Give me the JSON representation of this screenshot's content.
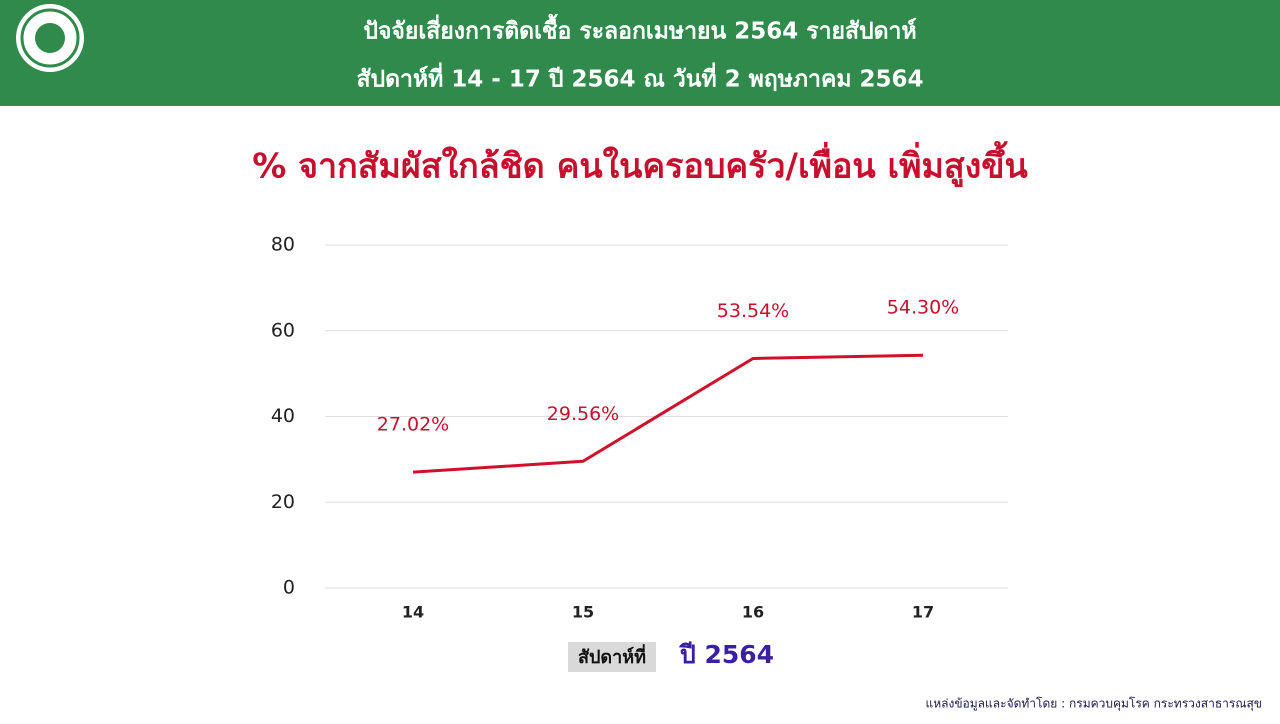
{
  "header": {
    "title": "ปัจจัยเสี่ยงการติดเชื้อ ระลอกเมษายน 2564 รายสัปดาห์",
    "subtitle": "สัปดาห์ที่ 14 - 17 ปี 2564 ณ วันที่ 2 พฤษภาคม 2564"
  },
  "chart_data": {
    "type": "line",
    "title": "% จากสัมผัสใกล้ชิด คนในครอบครัว/เพื่อน เพิ่มสูงขึ้น",
    "categories": [
      "14",
      "15",
      "16",
      "17"
    ],
    "values": [
      27.02,
      29.56,
      53.54,
      54.3
    ],
    "value_labels": [
      "27.02%",
      "29.56%",
      "53.54%",
      "54.30%"
    ],
    "color": "#d0112b",
    "ylim": [
      0,
      80
    ],
    "yticks": [
      0,
      20,
      40,
      60,
      80
    ],
    "grid": true,
    "xlabel": "สัปดาห์ที่",
    "annotation": "ปี 2564"
  },
  "source": "แหล่งข้อมูลและจัดทำโดย : กรมควบคุมโรค กระทรวงสาธารณสุข"
}
